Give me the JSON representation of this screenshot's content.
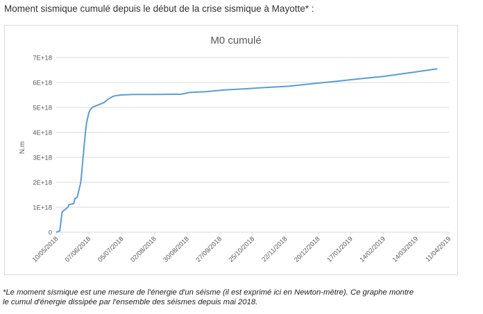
{
  "heading": "Moment sismique cumulé depuis le début de la crise sismique à Mayotte* :",
  "footnote": {
    "line1": "*Le moment sismique est une mesure de l'énergie d'un séisme (il est exprimé ici en Newton-mètre). Ce graphe montre",
    "line2": "le cumul d'énergie dissipée par l'ensemble des séismes depuis mai 2018."
  },
  "colors": {
    "line": "#5b9bd5",
    "grid": "#d9d9d9",
    "text": "#595959",
    "frame": "#d9d9d9"
  },
  "chart_data": {
    "type": "line",
    "title": "M0 cumulé",
    "xlabel": "",
    "ylabel": "N.m",
    "x_ticks": [
      "10/05/2018",
      "07/06/2018",
      "05/07/2018",
      "02/08/2018",
      "30/08/2018",
      "27/09/2018",
      "25/10/2018",
      "22/11/2018",
      "20/12/2018",
      "17/01/2019",
      "14/02/2019",
      "14/03/2019",
      "11/04/2019"
    ],
    "y_ticks": [
      "0",
      "1E+18",
      "2E+18",
      "3E+18",
      "4E+18",
      "5E+18",
      "6E+18",
      "7E+18"
    ],
    "ylim": [
      0,
      7e+18
    ],
    "grid": "horizontal",
    "legend": "none",
    "series": [
      {
        "x": [
          "2018-05-10",
          "2018-05-13",
          "2018-05-14",
          "2018-05-15",
          "2018-05-16",
          "2018-05-20",
          "2018-05-21",
          "2018-05-25",
          "2018-05-26",
          "2018-05-28",
          "2018-05-30",
          "2018-05-31",
          "2018-06-01",
          "2018-06-02",
          "2018-06-03",
          "2018-06-04",
          "2018-06-05",
          "2018-06-06",
          "2018-06-07",
          "2018-06-08",
          "2018-06-10",
          "2018-06-12",
          "2018-06-15",
          "2018-06-20",
          "2018-06-24",
          "2018-06-28",
          "2018-07-01",
          "2018-07-05",
          "2018-07-15",
          "2018-08-01",
          "2018-08-25",
          "2018-09-01",
          "2018-09-15",
          "2018-10-01",
          "2018-10-20",
          "2018-11-05",
          "2018-11-25",
          "2018-12-15",
          "2019-01-05",
          "2019-01-25",
          "2019-02-15",
          "2019-03-10",
          "2019-04-01"
        ],
        "y": [
          0,
          5e+16,
          4e+17,
          8e+17,
          8.5e+17,
          1e+18,
          1.1e+18,
          1.15e+18,
          1.35e+18,
          1.4e+18,
          1.8e+18,
          2e+18,
          2.5e+18,
          3e+18,
          3.5e+18,
          4e+18,
          4.4e+18,
          4.6e+18,
          4.8e+18,
          4.9e+18,
          5e+18,
          5.05e+18,
          5.1e+18,
          5.2e+18,
          5.35e+18,
          5.45e+18,
          5.48e+18,
          5.5e+18,
          5.52e+18,
          5.52e+18,
          5.53e+18,
          5.6e+18,
          5.63e+18,
          5.7e+18,
          5.75e+18,
          5.8e+18,
          5.85e+18,
          5.95e+18,
          6.05e+18,
          6.15e+18,
          6.25e+18,
          6.4e+18,
          6.55e+18
        ]
      }
    ]
  }
}
